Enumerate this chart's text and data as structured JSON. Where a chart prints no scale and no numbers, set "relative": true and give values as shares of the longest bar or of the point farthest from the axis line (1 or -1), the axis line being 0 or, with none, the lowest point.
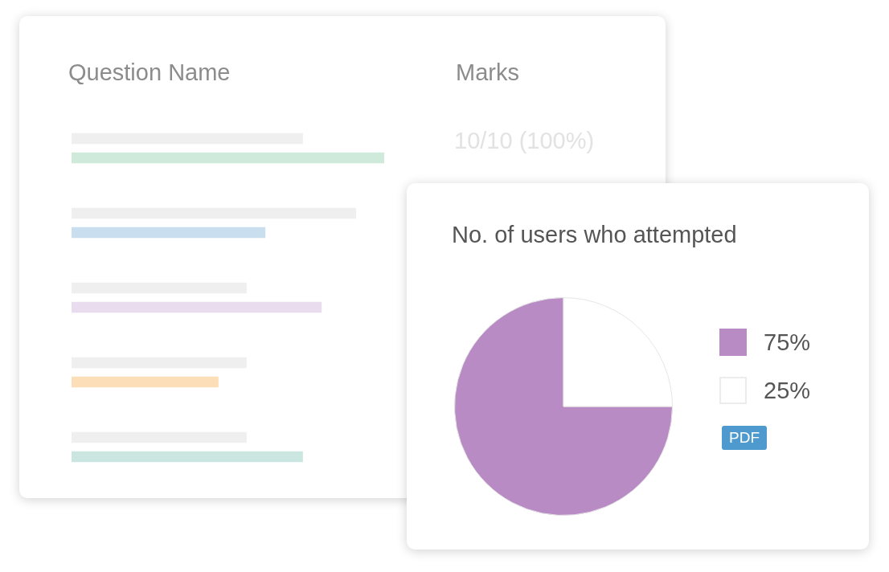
{
  "chart_data": [
    {
      "type": "bar",
      "orientation": "horizontal",
      "relative": true,
      "categories": [
        null,
        null,
        null,
        null,
        null
      ],
      "series": [
        {
          "color": "#efefef",
          "values": [
            0.74,
            0.91,
            0.56,
            0.56,
            0.56
          ]
        },
        {
          "colors": [
            "#cfe9da",
            "#c9dff0",
            "#e8dcee",
            "#fcdfb8",
            "#cbe6e0"
          ],
          "values": [
            1,
            0.62,
            0.8,
            0.47,
            0.74
          ]
        }
      ],
      "annotations": [
        "Question Name",
        "Marks",
        "10/10 (100%)"
      ]
    },
    {
      "type": "pie",
      "title": "No. of users who attempted",
      "categories": [
        "75%",
        "25%"
      ],
      "values": [
        75,
        25
      ],
      "colors": [
        "#b98bc5",
        "#ffffff"
      ],
      "legend": "right",
      "annotations": [
        "PDF"
      ]
    }
  ]
}
